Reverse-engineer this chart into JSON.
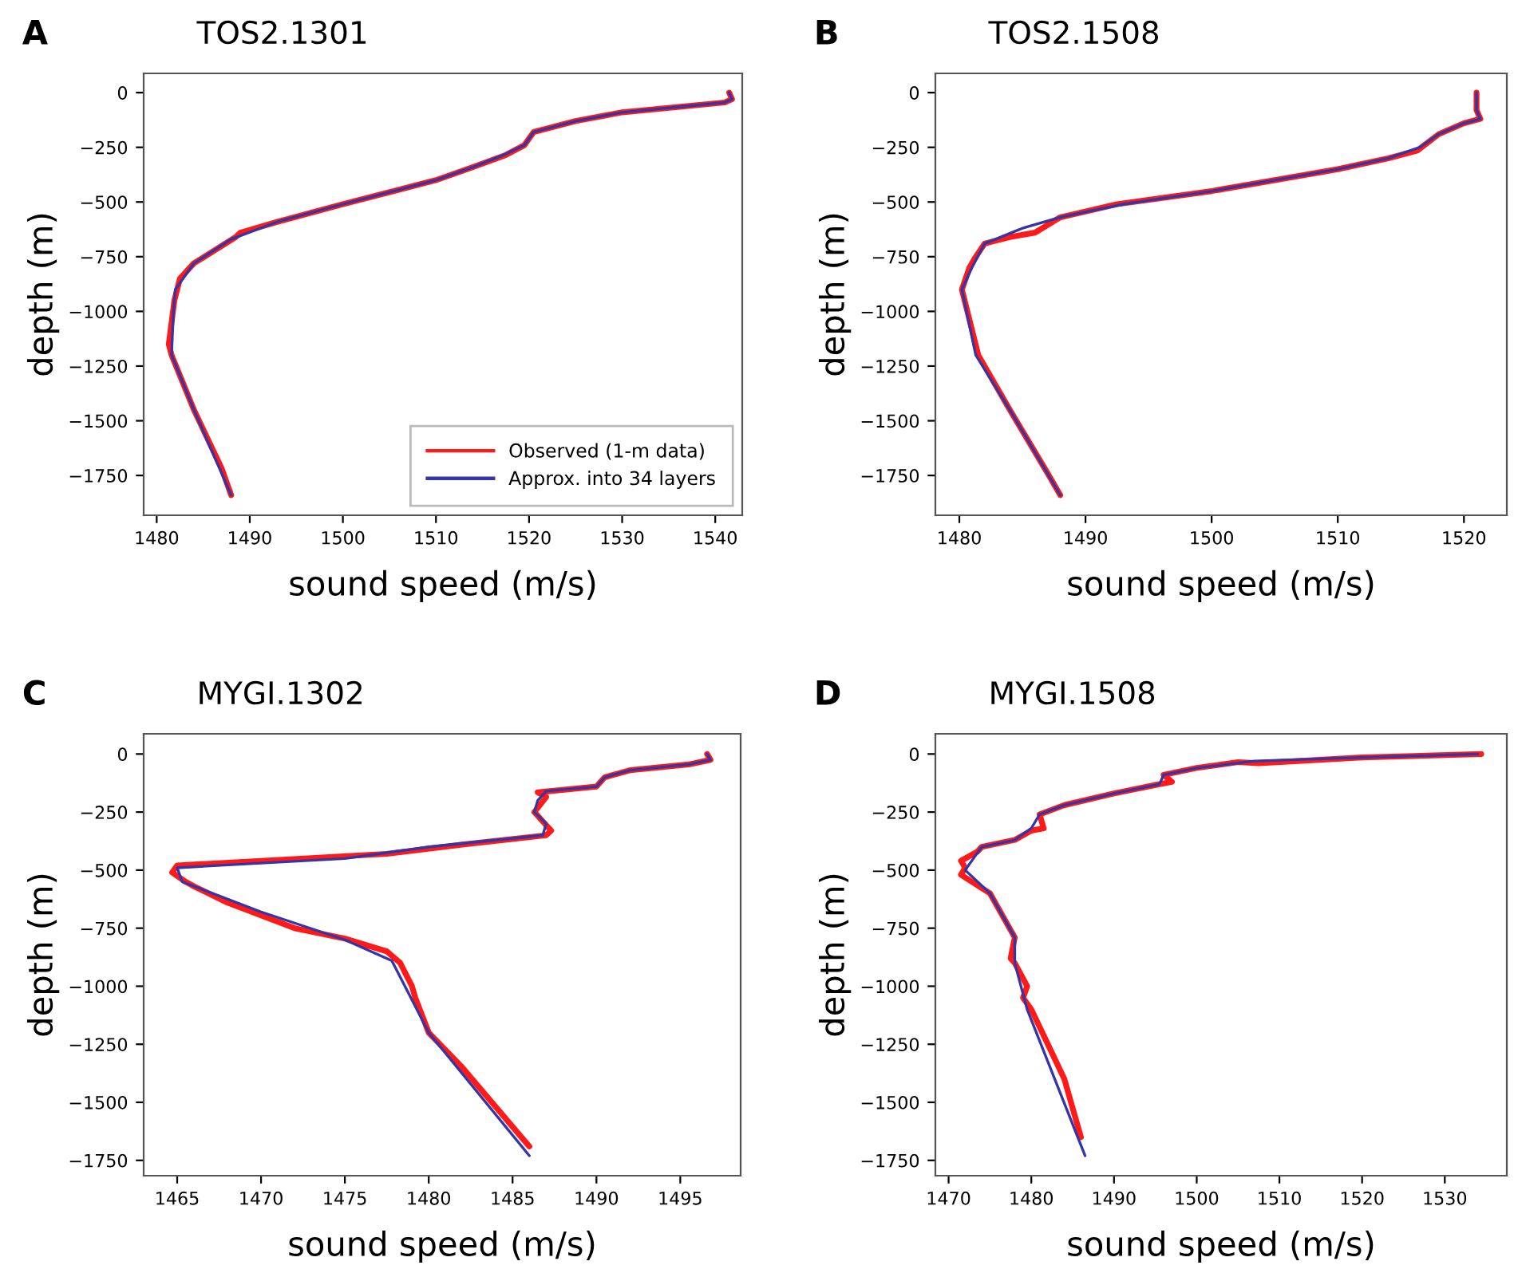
{
  "chart_data": [
    {
      "type": "line",
      "title": "TOS2.1301",
      "annotations": [
        "A"
      ],
      "xlabel": "sound speed (m/s)",
      "ylabel": "depth (m)",
      "xlim": [
        1478.6,
        1542.9
      ],
      "ylim": [
        -1932,
        88
      ],
      "xticks": [
        1480,
        1490,
        1500,
        1510,
        1520,
        1530,
        1540
      ],
      "yticks": [
        0,
        -250,
        -500,
        -750,
        -1000,
        -1250,
        -1500,
        -1750
      ],
      "grid": false,
      "legend": "bottom right",
      "line_style": "solid",
      "marker": "none",
      "series": [
        {
          "name": "Observed (1-m data)",
          "color": "#ff1a1a",
          "x": [
            1541.5,
            1541.8,
            1541,
            1530,
            1525,
            1520.5,
            1519.5,
            1517.5,
            1514,
            1510,
            1500,
            1493,
            1489,
            1488.5,
            1484,
            1482.5,
            1481.9,
            1481.3,
            1481.6,
            1484,
            1487,
            1488
          ],
          "values": [
            0,
            -30,
            -45,
            -90,
            -130,
            -180,
            -240,
            -285,
            -340,
            -400,
            -510,
            -590,
            -640,
            -660,
            -780,
            -850,
            -950,
            -1150,
            -1200,
            -1450,
            -1720,
            -1840
          ]
        },
        {
          "name": "Approx. into 34 layers",
          "color": "#3535a5",
          "x": [
            1541.5,
            1541.8,
            1541,
            1530,
            1525,
            1520.5,
            1519.5,
            1517,
            1514,
            1510,
            1500,
            1493,
            1488,
            1484,
            1482,
            1481.8,
            1481.6,
            1484,
            1488
          ],
          "values": [
            0,
            -30,
            -45,
            -90,
            -130,
            -180,
            -240,
            -290,
            -340,
            -400,
            -510,
            -590,
            -670,
            -780,
            -900,
            -1000,
            -1200,
            -1450,
            -1840
          ]
        }
      ]
    },
    {
      "type": "line",
      "title": "TOS2.1508",
      "annotations": [
        "B"
      ],
      "xlabel": "sound speed (m/s)",
      "ylabel": "depth (m)",
      "xlim": [
        1478.1,
        1523.4
      ],
      "ylim": [
        -1932,
        88
      ],
      "xticks": [
        1480,
        1490,
        1500,
        1510,
        1520
      ],
      "yticks": [
        0,
        -250,
        -500,
        -750,
        -1000,
        -1250,
        -1500,
        -1750
      ],
      "grid": false,
      "line_style": "solid",
      "marker": "none",
      "series": [
        {
          "color": "#ff1a1a",
          "x": [
            1521,
            1521,
            1521.3,
            1520,
            1518,
            1516.3,
            1514,
            1510,
            1505,
            1500,
            1492.5,
            1488,
            1486,
            1484,
            1482,
            1481.2,
            1480.8,
            1480.2,
            1481.5,
            1484,
            1487,
            1488
          ],
          "values": [
            0,
            -80,
            -120,
            -140,
            -190,
            -265,
            -300,
            -350,
            -400,
            -450,
            -510,
            -570,
            -640,
            -660,
            -690,
            -760,
            -800,
            -900,
            -1200,
            -1450,
            -1740,
            -1840
          ]
        },
        {
          "color": "#3535a5",
          "x": [
            1521,
            1521,
            1521.3,
            1520,
            1518,
            1516.5,
            1514,
            1510,
            1505,
            1500,
            1493,
            1488,
            1485,
            1482,
            1481,
            1480.2,
            1481.3,
            1484,
            1488
          ],
          "values": [
            0,
            -80,
            -120,
            -140,
            -190,
            -250,
            -300,
            -350,
            -400,
            -450,
            -510,
            -570,
            -620,
            -690,
            -800,
            -900,
            -1200,
            -1450,
            -1840
          ]
        }
      ]
    },
    {
      "type": "line",
      "title": "MYGI.1302",
      "annotations": [
        "C"
      ],
      "xlabel": "sound speed (m/s)",
      "ylabel": "depth (m)",
      "xlim": [
        1463.0,
        1498.6
      ],
      "ylim": [
        -1816,
        87
      ],
      "xticks": [
        1465,
        1470,
        1475,
        1480,
        1485,
        1490,
        1495
      ],
      "yticks": [
        0,
        -250,
        -500,
        -750,
        -1000,
        -1250,
        -1500,
        -1750
      ],
      "grid": false,
      "line_style": "solid",
      "marker": "none",
      "series": [
        {
          "color": "#ff1a1a",
          "x": [
            1496.6,
            1496.8,
            1495.5,
            1492,
            1490.5,
            1490,
            1486.5,
            1487,
            1486.3,
            1487.3,
            1487,
            1482,
            1477.5,
            1470,
            1465,
            1464.7,
            1465.5,
            1466,
            1468,
            1472,
            1475,
            1477.5,
            1478.3,
            1479,
            1479.2,
            1480,
            1482,
            1486
          ],
          "values": [
            0,
            -25,
            -45,
            -70,
            -100,
            -140,
            -165,
            -185,
            -250,
            -330,
            -350,
            -390,
            -430,
            -460,
            -480,
            -510,
            -550,
            -570,
            -640,
            -750,
            -795,
            -850,
            -900,
            -1000,
            -1050,
            -1200,
            -1350,
            -1690
          ]
        },
        {
          "color": "#3535a5",
          "x": [
            1496.6,
            1496.8,
            1495.5,
            1492,
            1490.5,
            1490,
            1487,
            1486.5,
            1486.3,
            1487,
            1486.8,
            1480,
            1475,
            1465,
            1465.3,
            1470,
            1475,
            1477.8,
            1480,
            1486
          ],
          "values": [
            0,
            -25,
            -45,
            -70,
            -100,
            -140,
            -160,
            -200,
            -250,
            -300,
            -350,
            -400,
            -450,
            -490,
            -550,
            -680,
            -800,
            -890,
            -1200,
            -1730
          ]
        }
      ]
    },
    {
      "type": "line",
      "title": "MYGI.1508",
      "annotations": [
        "D"
      ],
      "xlabel": "sound speed (m/s)",
      "ylabel": "depth (m)",
      "xlim": [
        1468.4,
        1537.5
      ],
      "ylim": [
        -1816,
        87
      ],
      "xticks": [
        1470,
        1480,
        1490,
        1500,
        1510,
        1520,
        1530
      ],
      "yticks": [
        0,
        -250,
        -500,
        -750,
        -1000,
        -1250,
        -1500,
        -1750
      ],
      "grid": false,
      "line_style": "solid",
      "marker": "none",
      "series": [
        {
          "color": "#ff1a1a",
          "x": [
            1534.4,
            1520,
            1507.5,
            1505,
            1500,
            1496,
            1497,
            1495.5,
            1490,
            1484,
            1481,
            1481.5,
            1480,
            1478,
            1474,
            1473.5,
            1471.5,
            1472,
            1471.5,
            1475,
            1478,
            1477.5,
            1478,
            1479.5,
            1479,
            1480,
            1484,
            1486
          ],
          "values": [
            0,
            -15,
            -40,
            -35,
            -60,
            -90,
            -120,
            -130,
            -170,
            -220,
            -260,
            -320,
            -330,
            -370,
            -400,
            -420,
            -460,
            -490,
            -520,
            -600,
            -790,
            -880,
            -900,
            -1000,
            -1050,
            -1100,
            -1400,
            -1650
          ]
        },
        {
          "color": "#3535a5",
          "x": [
            1534,
            1520,
            1507,
            1500,
            1496,
            1495.5,
            1490,
            1484,
            1481,
            1480,
            1478,
            1474,
            1472,
            1475,
            1478,
            1478,
            1479.5,
            1486.5
          ],
          "values": [
            0,
            -15,
            -30,
            -60,
            -90,
            -130,
            -170,
            -220,
            -260,
            -320,
            -370,
            -400,
            -500,
            -600,
            -790,
            -900,
            -1100,
            -1730
          ]
        }
      ]
    }
  ]
}
